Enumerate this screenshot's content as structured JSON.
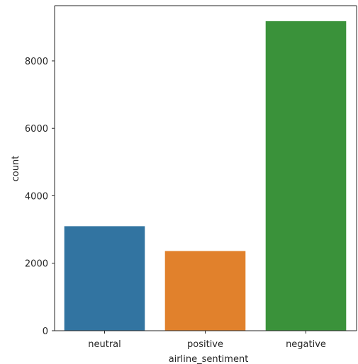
{
  "chart_data": {
    "type": "bar",
    "title": "",
    "xlabel": "airline_sentiment",
    "ylabel": "count",
    "categories": [
      "neutral",
      "positive",
      "negative"
    ],
    "values": [
      3099,
      2363,
      9178
    ],
    "colors": [
      "#3274a1",
      "#e1812c",
      "#3a923a"
    ],
    "ylim": [
      0,
      9637
    ],
    "yticks": [
      0,
      2000,
      4000,
      6000,
      8000
    ],
    "ytick_labels": [
      "0",
      "2000",
      "4000",
      "6000",
      "8000"
    ],
    "grid": false,
    "legend": "none"
  }
}
